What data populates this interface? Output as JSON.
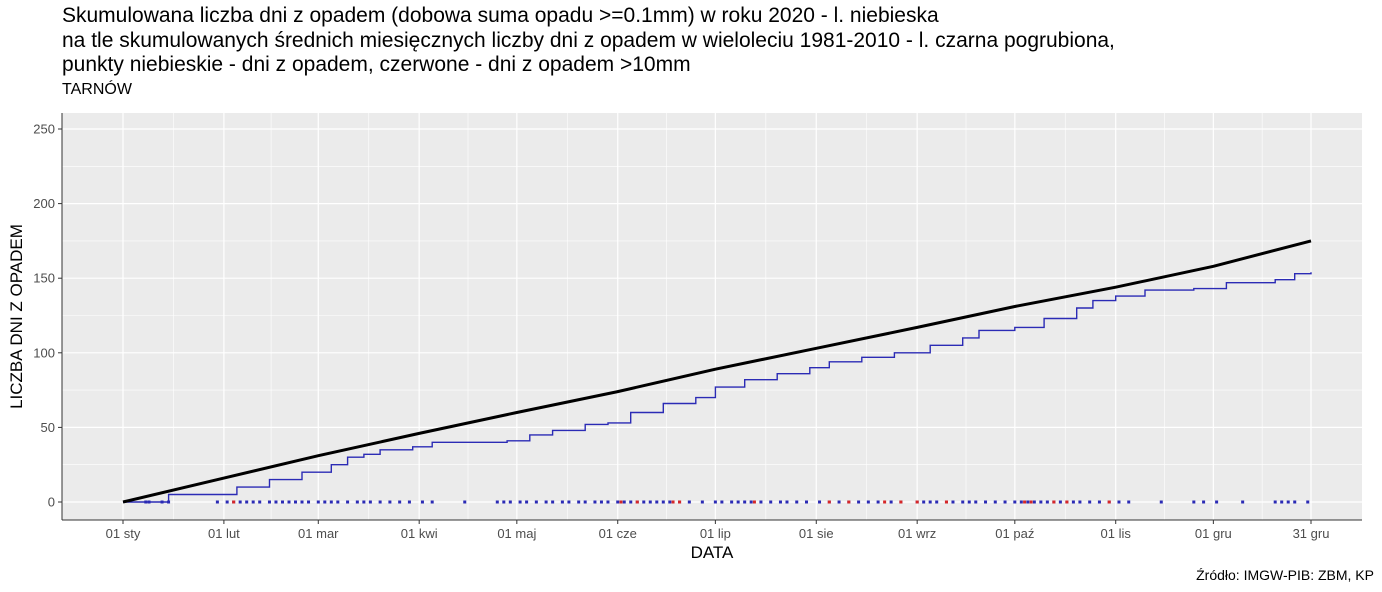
{
  "title_lines": [
    "Skumulowana liczba dni z opadem (dobowa suma opadu >=0.1mm) w roku 2020 - l. niebieska",
    "na tle skumulowanych średnich miesięcznych liczby dni z opadem w wieloleciu 1981-2010 - l. czarna pogrubiona,",
    "punkty niebieskie - dni z opadem, czerwone - dni z opadem >10mm"
  ],
  "subtitle": "TARNÓW",
  "caption": "Źródło: IMGW-PIB: ZBM, KP",
  "colors": {
    "panel": "#ebebeb",
    "grid_major": "#ffffff",
    "actual": "#2b2bb5",
    "normal": "#000000",
    "wet_day": "#2b2bb5",
    "heavy_day": "#d62728"
  },
  "chart_data": {
    "type": "line",
    "xlabel": "DATA",
    "ylabel": "LICZBA DNI Z OPADEM",
    "xlim": [
      "2020-01-01",
      "2020-12-31"
    ],
    "ylim": [
      0,
      250
    ],
    "yticks": [
      0,
      50,
      100,
      150,
      200,
      250
    ],
    "xticks": [
      {
        "date": "2020-01-01",
        "label": "01 sty"
      },
      {
        "date": "2020-02-01",
        "label": "01 lut"
      },
      {
        "date": "2020-03-01",
        "label": "01 mar"
      },
      {
        "date": "2020-04-01",
        "label": "01 kwi"
      },
      {
        "date": "2020-05-01",
        "label": "01 maj"
      },
      {
        "date": "2020-06-01",
        "label": "01 cze"
      },
      {
        "date": "2020-07-01",
        "label": "01 lip"
      },
      {
        "date": "2020-08-01",
        "label": "01 sie"
      },
      {
        "date": "2020-09-01",
        "label": "01 wrz"
      },
      {
        "date": "2020-10-01",
        "label": "01 paź"
      },
      {
        "date": "2020-11-01",
        "label": "01 lis"
      },
      {
        "date": "2020-12-01",
        "label": "01 gru"
      },
      {
        "date": "2020-12-31",
        "label": "31 gru"
      }
    ],
    "grid": true,
    "legend": "none",
    "series": [
      {
        "points": [
          [
            "2020-01-01",
            0
          ],
          [
            "2020-01-15",
            5
          ],
          [
            "2020-01-29",
            5
          ],
          [
            "2020-02-05",
            10
          ],
          [
            "2020-02-15",
            15
          ],
          [
            "2020-02-25",
            20
          ],
          [
            "2020-03-05",
            25
          ],
          [
            "2020-03-10",
            30
          ],
          [
            "2020-03-15",
            32
          ],
          [
            "2020-03-20",
            35
          ],
          [
            "2020-03-30",
            37
          ],
          [
            "2020-04-05",
            40
          ],
          [
            "2020-04-28",
            41
          ],
          [
            "2020-05-05",
            45
          ],
          [
            "2020-05-12",
            48
          ],
          [
            "2020-05-22",
            52
          ],
          [
            "2020-05-29",
            53
          ],
          [
            "2020-06-05",
            60
          ],
          [
            "2020-06-15",
            66
          ],
          [
            "2020-06-25",
            70
          ],
          [
            "2020-07-01",
            77
          ],
          [
            "2020-07-10",
            82
          ],
          [
            "2020-07-20",
            86
          ],
          [
            "2020-07-30",
            90
          ],
          [
            "2020-08-05",
            94
          ],
          [
            "2020-08-15",
            97
          ],
          [
            "2020-08-25",
            100
          ],
          [
            "2020-09-05",
            105
          ],
          [
            "2020-09-15",
            110
          ],
          [
            "2020-09-20",
            115
          ],
          [
            "2020-10-01",
            117
          ],
          [
            "2020-10-10",
            123
          ],
          [
            "2020-10-20",
            130
          ],
          [
            "2020-10-25",
            135
          ],
          [
            "2020-11-01",
            138
          ],
          [
            "2020-11-10",
            142
          ],
          [
            "2020-11-25",
            143
          ],
          [
            "2020-12-05",
            147
          ],
          [
            "2020-12-20",
            149
          ],
          [
            "2020-12-26",
            153
          ],
          [
            "2020-12-31",
            154
          ]
        ]
      },
      {
        "points": [
          [
            "2020-01-01",
            0
          ],
          [
            "2020-02-01",
            16
          ],
          [
            "2020-03-01",
            31
          ],
          [
            "2020-04-01",
            46
          ],
          [
            "2020-05-01",
            60
          ],
          [
            "2020-06-01",
            74
          ],
          [
            "2020-07-01",
            89
          ],
          [
            "2020-08-01",
            103
          ],
          [
            "2020-09-01",
            117
          ],
          [
            "2020-10-01",
            131
          ],
          [
            "2020-11-01",
            144
          ],
          [
            "2020-12-01",
            158
          ],
          [
            "2020-12-31",
            175
          ]
        ]
      }
    ],
    "wet_days": [
      "2020-01-08",
      "2020-01-09",
      "2020-01-13",
      "2020-01-15",
      "2020-01-30",
      "2020-02-02",
      "2020-02-04",
      "2020-02-06",
      "2020-02-08",
      "2020-02-10",
      "2020-02-12",
      "2020-02-15",
      "2020-02-17",
      "2020-02-19",
      "2020-02-21",
      "2020-02-23",
      "2020-02-25",
      "2020-02-27",
      "2020-03-01",
      "2020-03-03",
      "2020-03-05",
      "2020-03-07",
      "2020-03-10",
      "2020-03-13",
      "2020-03-15",
      "2020-03-17",
      "2020-03-20",
      "2020-03-23",
      "2020-03-26",
      "2020-03-29",
      "2020-04-02",
      "2020-04-05",
      "2020-04-15",
      "2020-04-25",
      "2020-04-27",
      "2020-04-29",
      "2020-05-02",
      "2020-05-04",
      "2020-05-07",
      "2020-05-10",
      "2020-05-12",
      "2020-05-15",
      "2020-05-17",
      "2020-05-20",
      "2020-05-22",
      "2020-05-25",
      "2020-05-27",
      "2020-05-29",
      "2020-06-01",
      "2020-06-03",
      "2020-06-05",
      "2020-06-07",
      "2020-06-09",
      "2020-06-11",
      "2020-06-13",
      "2020-06-15",
      "2020-06-17",
      "2020-06-20",
      "2020-06-23",
      "2020-06-27",
      "2020-07-01",
      "2020-07-03",
      "2020-07-06",
      "2020-07-08",
      "2020-07-10",
      "2020-07-12",
      "2020-07-15",
      "2020-07-18",
      "2020-07-21",
      "2020-07-23",
      "2020-07-26",
      "2020-07-29",
      "2020-08-02",
      "2020-08-05",
      "2020-08-08",
      "2020-08-11",
      "2020-08-14",
      "2020-08-17",
      "2020-08-20",
      "2020-08-24",
      "2020-08-27",
      "2020-09-01",
      "2020-09-03",
      "2020-09-05",
      "2020-09-07",
      "2020-09-10",
      "2020-09-12",
      "2020-09-15",
      "2020-09-17",
      "2020-09-19",
      "2020-09-22",
      "2020-09-25",
      "2020-09-28",
      "2020-10-01",
      "2020-10-03",
      "2020-10-05",
      "2020-10-07",
      "2020-10-09",
      "2020-10-11",
      "2020-10-13",
      "2020-10-15",
      "2020-10-17",
      "2020-10-19",
      "2020-10-21",
      "2020-10-24",
      "2020-10-27",
      "2020-10-30",
      "2020-11-02",
      "2020-11-05",
      "2020-11-15",
      "2020-11-25",
      "2020-11-28",
      "2020-12-02",
      "2020-12-10",
      "2020-12-20",
      "2020-12-22",
      "2020-12-24",
      "2020-12-26",
      "2020-12-30"
    ],
    "heavy_days": [
      "2020-02-04",
      "2020-06-02",
      "2020-06-07",
      "2020-06-18",
      "2020-06-20",
      "2020-07-13",
      "2020-08-05",
      "2020-08-11",
      "2020-08-22",
      "2020-08-27",
      "2020-09-01",
      "2020-09-10",
      "2020-10-04",
      "2020-10-06",
      "2020-10-13",
      "2020-10-17",
      "2020-10-30"
    ]
  }
}
